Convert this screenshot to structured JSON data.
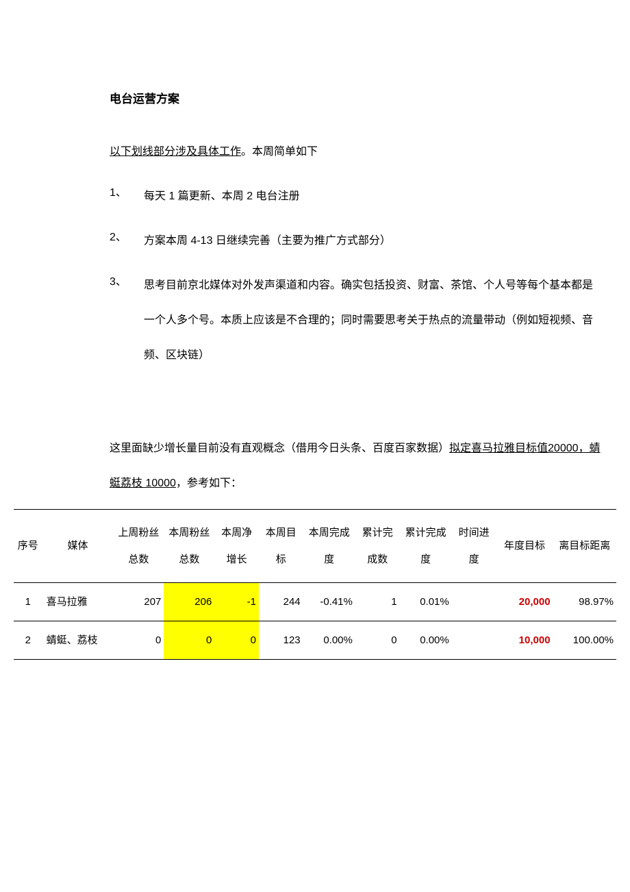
{
  "title": "电台运营方案",
  "intro_underlined": "以下划线部分涉及具体工作",
  "intro_rest": "。本周简单如下",
  "items": [
    {
      "num": "1、",
      "text": "每天 1 篇更新、本周 2 电台注册"
    },
    {
      "num": "2、",
      "text": "方案本周 4-13 日继续完善（主要为推广方式部分）"
    },
    {
      "num": "3、",
      "text": "思考目前京北媒体对外发声渠道和内容。确实包括投资、财富、茶馆、个人号等每个基本都是一个人多个号。本质上应该是不合理的；同时需要思考关于热点的流量带动（例如短视频、音频、区块链）"
    }
  ],
  "para2_a": "这里面缺少增长量目前没有直观概念（借用今日头条、百度百家数据）",
  "para2_u": "拟定喜马拉雅目标值20000，蜻蜓荔枝 10000",
  "para2_b": "，参考如下：",
  "table": {
    "columns": [
      "序号",
      "媒体",
      "上周粉丝总数",
      "本周粉丝总数",
      "本周净增长",
      "本周目标",
      "本周完成度",
      "累计完成数",
      "累计完成度",
      "时间进度",
      "年度目标",
      "离目标距离"
    ],
    "rows": [
      {
        "idx": "1",
        "media": "喜马拉雅",
        "last_fans": "207",
        "this_fans": "206",
        "net": "-1",
        "week_goal": "244",
        "week_done": "-0.41%",
        "cum_done_cnt": "1",
        "cum_done_pct": "0.01%",
        "time_prog": "",
        "year_goal": "20,000",
        "dist": "98.97%",
        "highlight_cols": [
          "this_fans",
          "net"
        ],
        "red_cols": [
          "year_goal"
        ]
      },
      {
        "idx": "2",
        "media": "蜻蜓、荔枝",
        "last_fans": "0",
        "this_fans": "0",
        "net": "0",
        "week_goal": "123",
        "week_done": "0.00%",
        "cum_done_cnt": "0",
        "cum_done_pct": "0.00%",
        "time_prog": "",
        "year_goal": "10,000",
        "dist": "100.00%",
        "highlight_cols": [
          "this_fans",
          "net"
        ],
        "red_cols": [
          "year_goal"
        ]
      }
    ],
    "highlight_color": "#ffff00",
    "red_text_color": "#cc0000",
    "border_color": "#000000",
    "font_size": 15
  }
}
